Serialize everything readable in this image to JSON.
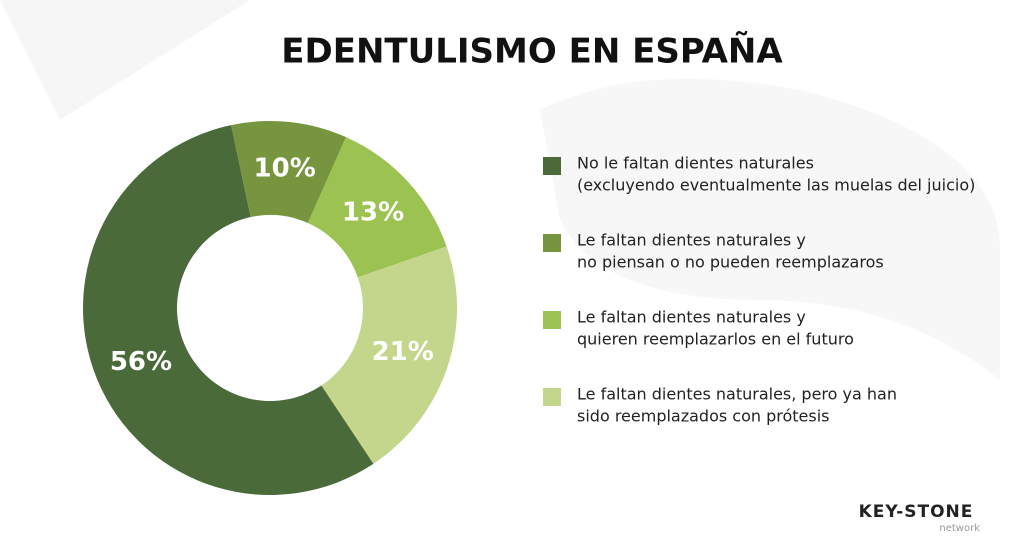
{
  "chart_data": {
    "type": "pie",
    "title": "EDENTULISMO EN ESPAÑA",
    "categories": [
      [
        "No le faltan dientes naturales",
        "(excluyendo eventualmente las muelas del juicio)"
      ],
      [
        "Le faltan dientes naturales y",
        "no piensan o no pueden reemplazaros"
      ],
      [
        "Le faltan dientes naturales y",
        "quieren reemplazarlos en el futuro"
      ],
      [
        "Le faltan dientes naturales, pero ya han",
        "sido reemplazados con prótesis"
      ]
    ],
    "values": [
      56,
      10,
      13,
      21
    ],
    "value_labels": [
      "56%",
      "10%",
      "13%",
      "21%"
    ],
    "colors": [
      "#4a6a3a",
      "#77953e",
      "#9cc352",
      "#c3d68c"
    ],
    "legend": "right"
  },
  "logo": {
    "name": "KEY-STONE",
    "tagline": "network"
  }
}
